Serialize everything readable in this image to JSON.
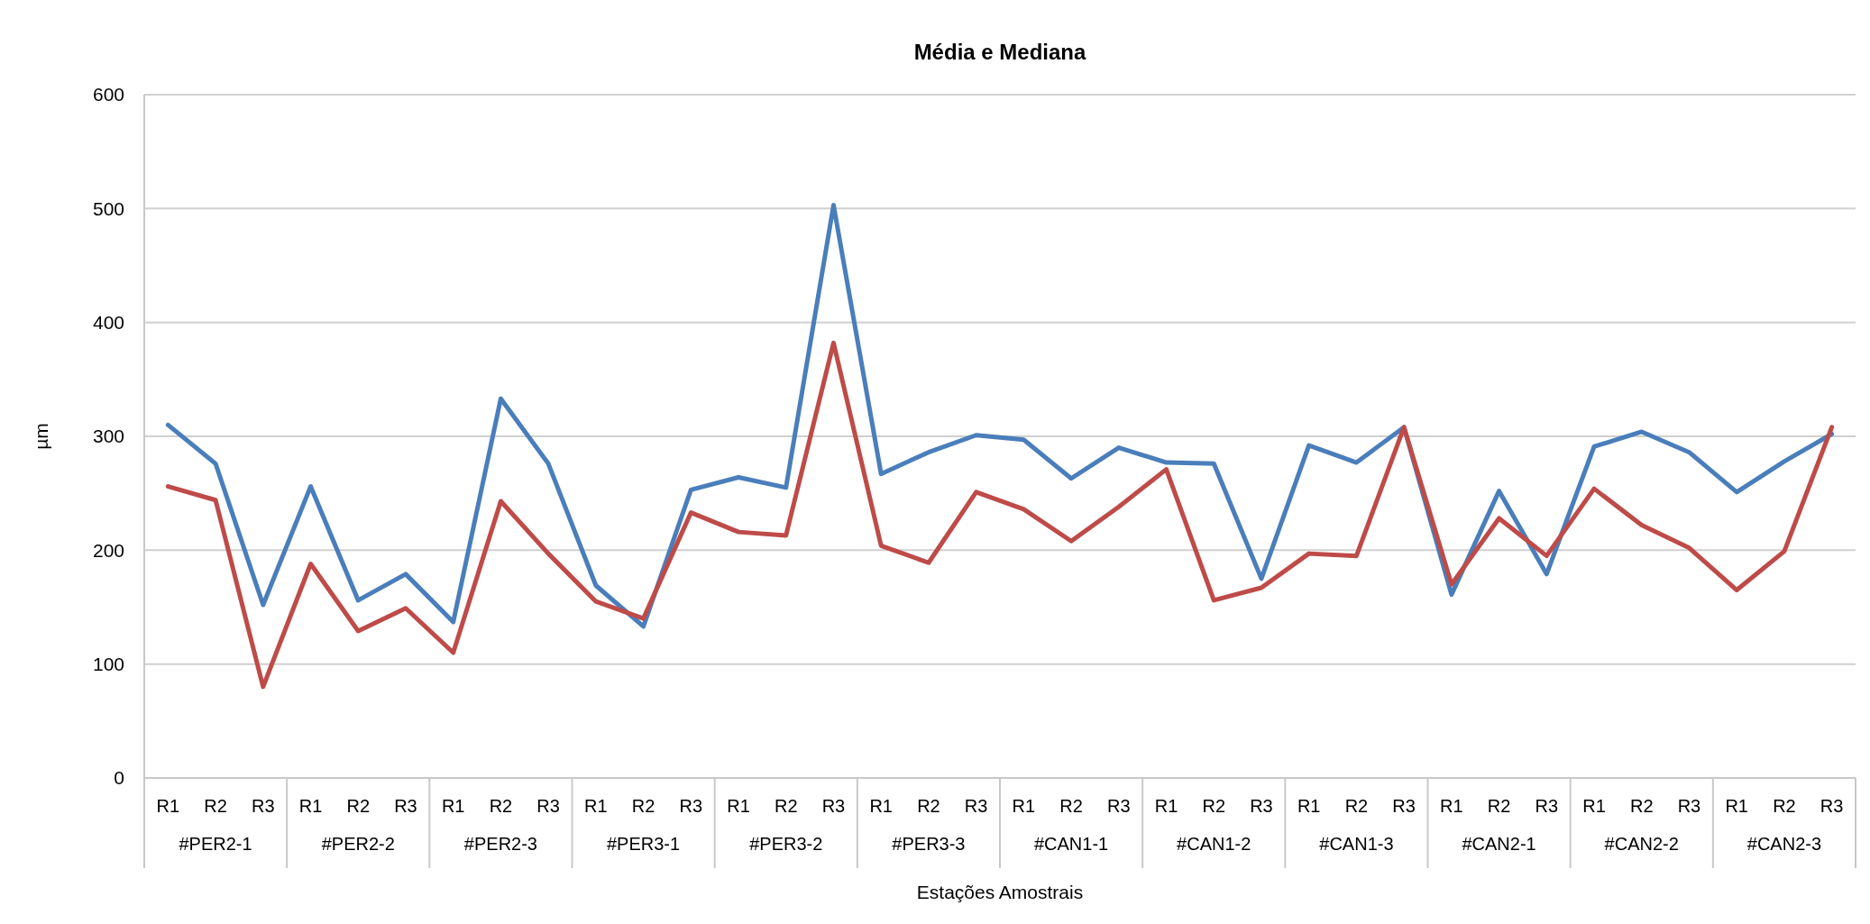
{
  "chart_data": {
    "type": "line",
    "title": "Média e Mediana",
    "xlabel": "Estações Amostrais",
    "ylabel": "µm",
    "categories": [
      "R1",
      "R2",
      "R3",
      "R1",
      "R2",
      "R3",
      "R1",
      "R2",
      "R3",
      "R1",
      "R2",
      "R3",
      "R1",
      "R2",
      "R3",
      "R1",
      "R2",
      "R3",
      "R1",
      "R2",
      "R3",
      "R1",
      "R2",
      "R3",
      "R1",
      "R2",
      "R3",
      "R1",
      "R2",
      "R3",
      "R1",
      "R2",
      "R3",
      "R1",
      "R2",
      "R3"
    ],
    "annotations": [
      "#PER2-1",
      "#PER2-2",
      "#PER2-3",
      "#PER3-1",
      "#PER3-2",
      "#PER3-3",
      "#CAN1-1",
      "#CAN1-2",
      "#CAN1-3",
      "#CAN2-1",
      "#CAN2-2",
      "#CAN2-3"
    ],
    "series": [
      {
        "color": "#4a7ebb",
        "values": [
          310,
          276,
          152,
          256,
          156,
          179,
          137,
          333,
          276,
          169,
          133,
          253,
          264,
          255,
          503,
          267,
          286,
          301,
          297,
          263,
          290,
          277,
          276,
          175,
          292,
          277,
          308,
          161,
          252,
          179,
          291,
          304,
          286,
          251,
          278,
          302
        ]
      },
      {
        "color": "#be4b48",
        "values": [
          256,
          244,
          80,
          188,
          129,
          149,
          110,
          243,
          197,
          155,
          140,
          233,
          216,
          213,
          382,
          204,
          189,
          251,
          236,
          208,
          238,
          271,
          156,
          167,
          197,
          195,
          308,
          170,
          228,
          195,
          254,
          222,
          202,
          165,
          199,
          308
        ]
      }
    ],
    "ylim": [
      0,
      600
    ],
    "yticks": [
      0,
      100,
      200,
      300,
      400,
      500,
      600
    ],
    "grid": "y",
    "marker": "none",
    "line_style": "solid"
  }
}
